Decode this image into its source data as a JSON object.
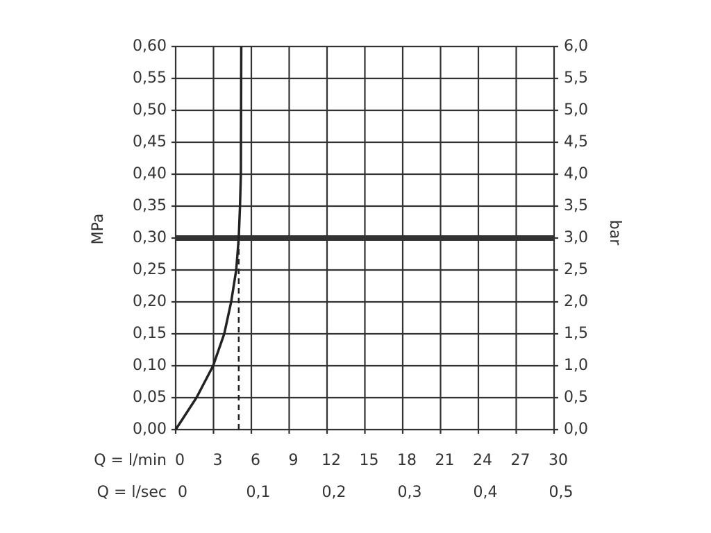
{
  "chart_data": {
    "type": "line",
    "ylabel": "MPa",
    "y2label": "bar",
    "xlabel": "Q = l/min",
    "x2label": "Q = l/sec",
    "xlim": [
      0,
      30
    ],
    "xticks": [
      0,
      3,
      6,
      9,
      12,
      15,
      18,
      21,
      24,
      27,
      30
    ],
    "x2lim": [
      0,
      0.5
    ],
    "x2ticks": [
      0,
      {
        "value": 0.1,
        "label": "0,1"
      },
      {
        "value": 0.2,
        "label": "0,2"
      },
      {
        "value": 0.3,
        "label": "0,3"
      },
      {
        "value": 0.4,
        "label": "0,4"
      },
      {
        "value": 0.5,
        "label": "0,5"
      }
    ],
    "ylim": [
      0,
      0.6
    ],
    "yticks": [
      {
        "value": 0,
        "label": "0,00"
      },
      {
        "value": 0.05,
        "label": "0,05"
      },
      {
        "value": 0.1,
        "label": "0,10"
      },
      {
        "value": 0.15,
        "label": "0,15"
      },
      {
        "value": 0.2,
        "label": "0,20"
      },
      {
        "value": 0.25,
        "label": "0,25"
      },
      {
        "value": 0.3,
        "label": "0,30"
      },
      {
        "value": 0.35,
        "label": "0,35"
      },
      {
        "value": 0.4,
        "label": "0,40"
      },
      {
        "value": 0.45,
        "label": "0,45"
      },
      {
        "value": 0.5,
        "label": "0,50"
      },
      {
        "value": 0.55,
        "label": "0,55"
      },
      {
        "value": 0.6,
        "label": "0,60"
      }
    ],
    "y2lim": [
      0,
      6
    ],
    "y2ticks": [
      {
        "value": 0,
        "label": "0,0"
      },
      {
        "value": 0.5,
        "label": "0,5"
      },
      {
        "value": 1,
        "label": "1,0"
      },
      {
        "value": 1.5,
        "label": "1,5"
      },
      {
        "value": 2,
        "label": "2,0"
      },
      {
        "value": 2.5,
        "label": "2,5"
      },
      {
        "value": 3,
        "label": "3,0"
      },
      {
        "value": 3.5,
        "label": "3,5"
      },
      {
        "value": 4,
        "label": "4,0"
      },
      {
        "value": 4.5,
        "label": "4,5"
      },
      {
        "value": 5,
        "label": "5,0"
      },
      {
        "value": 5.5,
        "label": "5,5"
      },
      {
        "value": 6,
        "label": "6,0"
      }
    ],
    "grid": true,
    "hline": 0.3,
    "vline_dashed": 5,
    "series": [
      {
        "color": "#222222",
        "x": [
          0,
          1.65,
          2.97,
          3.85,
          4.4,
          4.8,
          5.0,
          5.1,
          5.17,
          5.2
        ],
        "values": [
          0,
          0.05,
          0.1,
          0.15,
          0.2,
          0.25,
          0.3,
          0.35,
          0.4,
          0.6
        ]
      }
    ]
  }
}
